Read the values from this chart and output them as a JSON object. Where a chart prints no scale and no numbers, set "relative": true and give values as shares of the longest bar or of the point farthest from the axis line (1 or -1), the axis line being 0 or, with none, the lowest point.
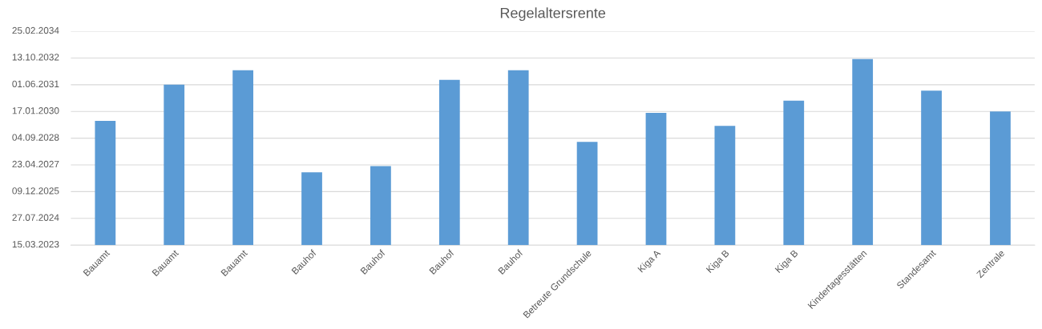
{
  "chart_data": {
    "type": "bar",
    "title": "Regelaltersrente",
    "relative": true,
    "categories": [
      "Bauamt",
      "Bauamt",
      "Bauamt",
      "Bauhof",
      "Bauhof",
      "Bauhof",
      "Bauhof",
      "Betreute Grundschule",
      "Kiga A",
      "Kiga B",
      "Kiga B",
      "Kindertagesstätten",
      "Standesamt",
      "Zentrale"
    ],
    "values": [
      0.667,
      0.862,
      0.94,
      0.391,
      0.425,
      0.888,
      0.94,
      0.555,
      0.71,
      0.641,
      0.776,
      1,
      0.83,
      0.718
    ],
    "color": "#5b9bd5",
    "annotations": [
      "15.03.2023",
      "27.07.2024",
      "09.12.2025",
      "23.04.2027",
      "04.09.2028",
      "17.01.2030",
      "01.06.2031",
      "13.10.2032",
      "25.02.2034"
    ],
    "grid": "y"
  }
}
